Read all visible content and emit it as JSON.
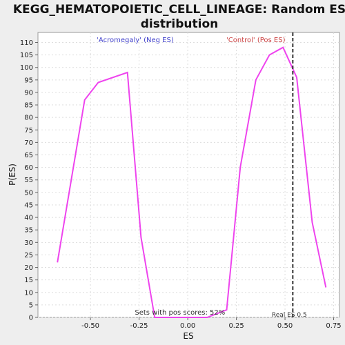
{
  "chart_data": {
    "type": "line",
    "title": "KEGG_HEMATOPOIETIC_CELL_LINEAGE: Random ES distribution",
    "title_lines": [
      "KEGG_HEMATOPOIETIC_CELL_LINEAGE: Random ES",
      "distribution"
    ],
    "xlabel": "ES",
    "ylabel": "P(ES)",
    "xlim": [
      -0.77,
      0.78
    ],
    "ylim": [
      0,
      114
    ],
    "x_ticks": [
      -0.5,
      -0.25,
      0.0,
      0.25,
      0.5,
      0.75
    ],
    "x_tick_labels": [
      "-0.50",
      "-0.25",
      "0.00",
      "0.25",
      "0.50",
      "0.75"
    ],
    "y_ticks": [
      0,
      5,
      10,
      15,
      20,
      25,
      30,
      35,
      40,
      45,
      50,
      55,
      60,
      65,
      70,
      75,
      80,
      85,
      90,
      95,
      100,
      105,
      110
    ],
    "y_tick_labels": [
      "0",
      "5",
      "10",
      "15",
      "20",
      "25",
      "30",
      "35",
      "40",
      "45",
      "50",
      "55",
      "60",
      "65",
      "70",
      "75",
      "80",
      "85",
      "90",
      "95",
      "100",
      "105",
      "110"
    ],
    "grid": true,
    "series": [
      {
        "color": "#ee44ee",
        "x": [
          -0.67,
          -0.53,
          -0.46,
          -0.31,
          -0.24,
          -0.17,
          -0.1,
          0.0,
          0.1,
          0.2,
          0.27,
          0.35,
          0.42,
          0.49,
          0.56,
          0.64,
          0.71
        ],
        "y": [
          22,
          87,
          94,
          98,
          32,
          0,
          0,
          0,
          0,
          3,
          60,
          95,
          105,
          108,
          96,
          38,
          12
        ]
      }
    ],
    "real_es": 0.54,
    "real_es_label": "Real ES 0.5",
    "annotations": {
      "neg_label": "'Acromegaly' (Neg ES)",
      "pos_label": "'Control' (Pos ES)",
      "pos_scores": "Sets with pos scores: 52%"
    },
    "colors": {
      "line": "#ee44ee",
      "neg_label": "#4444cc",
      "pos_label": "#cc4444",
      "grid": "#dddddd",
      "plot_bg": "#ffffff"
    }
  }
}
